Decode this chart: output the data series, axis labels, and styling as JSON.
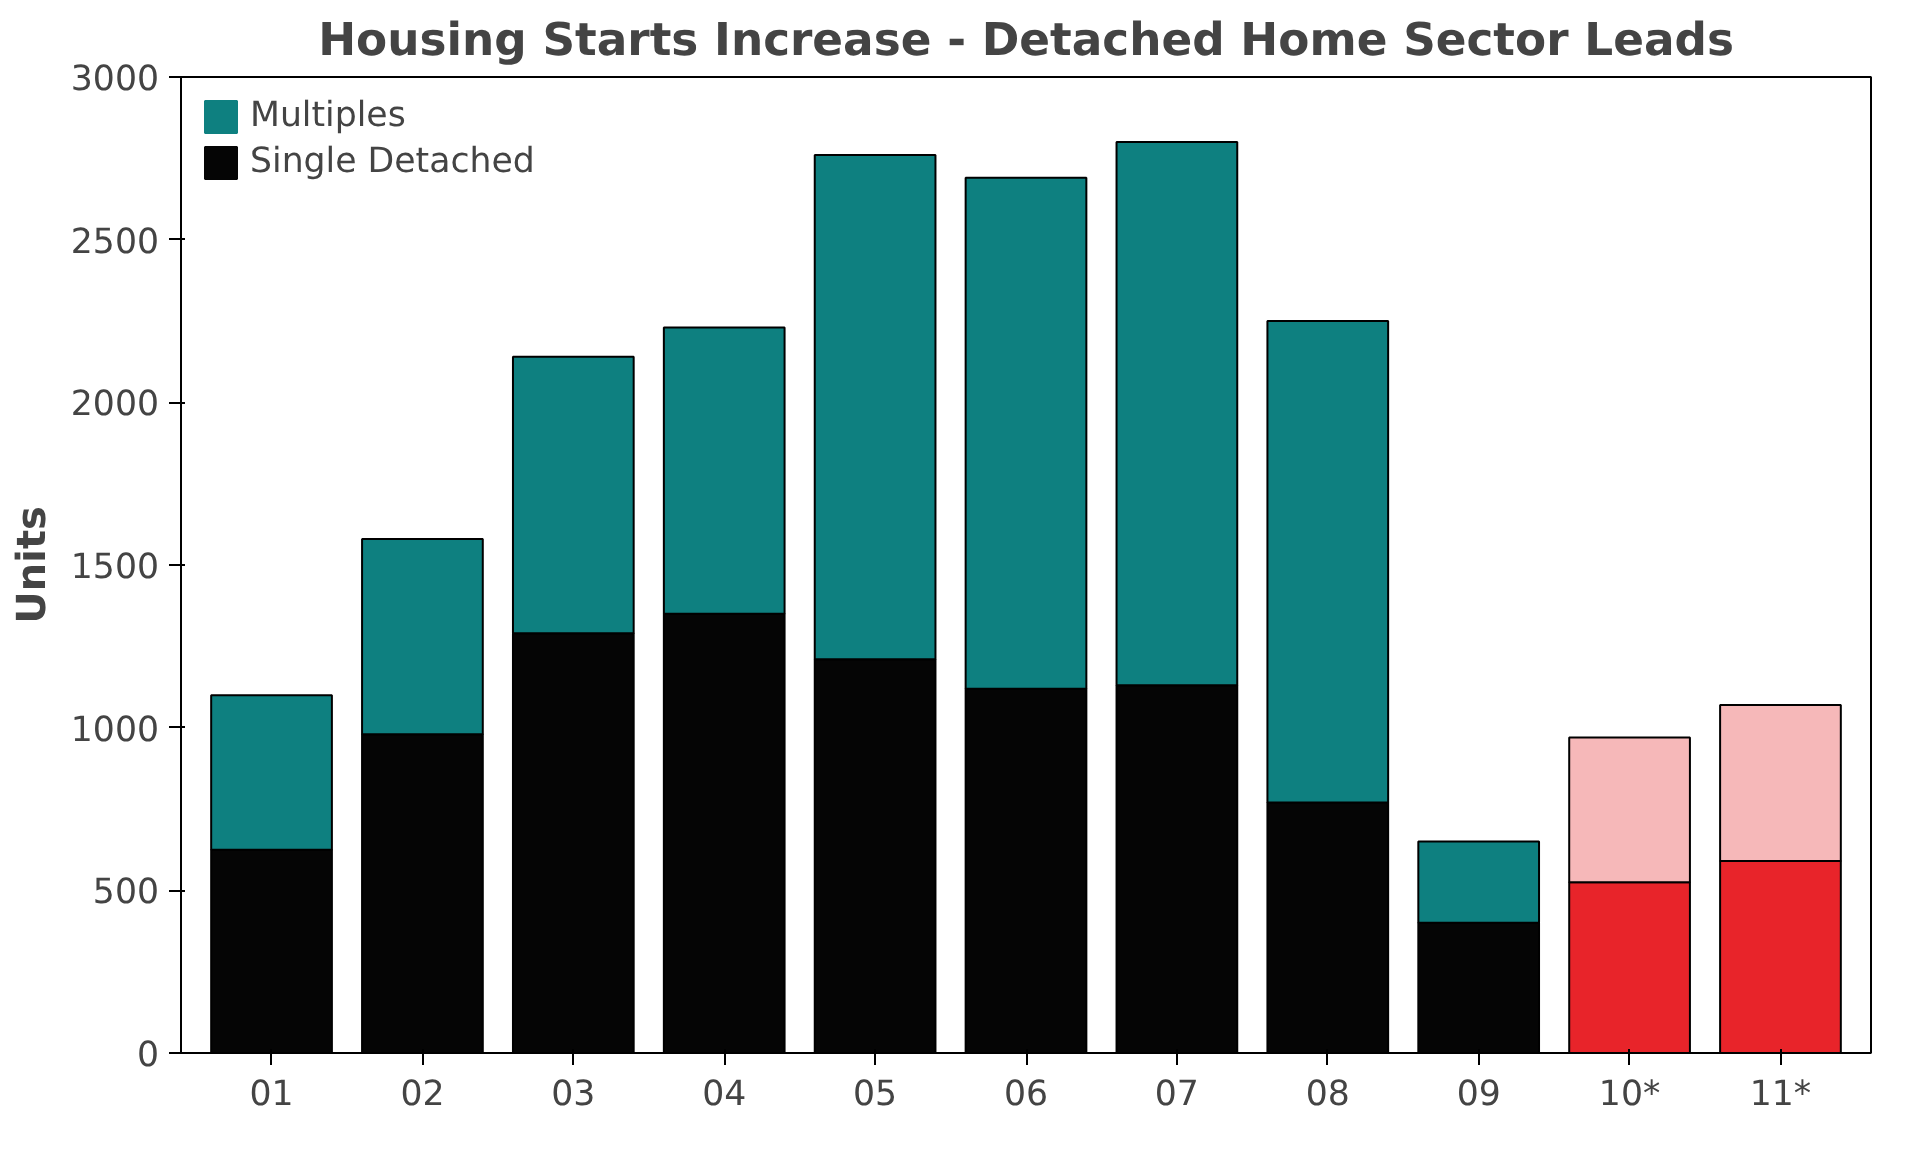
{
  "chart_data": {
    "type": "bar",
    "title": "Housing Starts Increase - Detached Home Sector Leads",
    "ylabel": "Units",
    "categories": [
      "01",
      "02",
      "03",
      "04",
      "05",
      "06",
      "07",
      "08",
      "09",
      "10*",
      "11*"
    ],
    "stacked": true,
    "ylim": [
      0,
      3000
    ],
    "yticks": [
      0,
      500,
      1000,
      1500,
      2000,
      2500,
      3000
    ],
    "grid": false,
    "legend": "top left",
    "series": [
      {
        "name": "Single Detached",
        "color": "#050505",
        "colors": [
          "#050505",
          "#050505",
          "#050505",
          "#050505",
          "#050505",
          "#050505",
          "#050505",
          "#050505",
          "#050505",
          "#e8242a",
          "#e8242a"
        ],
        "values": [
          625,
          980,
          1290,
          1350,
          1210,
          1120,
          1130,
          770,
          400,
          525,
          590
        ]
      },
      {
        "name": "Multiples",
        "color": "#0e8080",
        "colors": [
          "#0e8080",
          "#0e8080",
          "#0e8080",
          "#0e8080",
          "#0e8080",
          "#0e8080",
          "#0e8080",
          "#0e8080",
          "#0e8080",
          "#f6b8b9",
          "#f6b8b9"
        ],
        "values": [
          475,
          600,
          850,
          880,
          1550,
          1570,
          1670,
          1480,
          250,
          445,
          480
        ]
      }
    ]
  }
}
